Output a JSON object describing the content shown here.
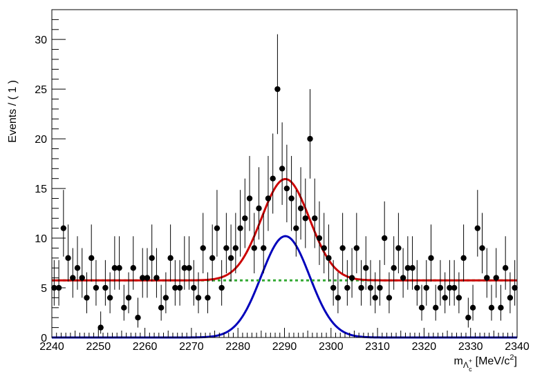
{
  "chart_data": {
    "type": "scatter",
    "title": "",
    "ylabel": "Events / ( 1 )",
    "xlabel": {
      "m": "m",
      "sub": "Λ",
      "sub_sup": "+",
      "sub_sub": "c",
      "units": "[MeV/c",
      "units_sup": "2",
      "units_close": "]"
    },
    "xlim": [
      2240,
      2340
    ],
    "ylim": [
      0,
      33
    ],
    "x_ticks": [
      2240,
      2250,
      2260,
      2270,
      2280,
      2290,
      2300,
      2310,
      2320,
      2330,
      2340
    ],
    "y_ticks": [
      0,
      5,
      10,
      15,
      20,
      25,
      30
    ],
    "grid": false,
    "colors": {
      "data": "#000000",
      "total_fit": "#cc0000",
      "signal": "#0000bb",
      "background": "#33aa33"
    },
    "fit": {
      "mean": 2290.2,
      "sigma": 5.2,
      "signal_amplitude": 10.2,
      "background_level": 5.75
    },
    "series": [
      {
        "kind": "data_points",
        "x": [
          2240.5,
          2241.5,
          2242.5,
          2243.5,
          2244.5,
          2245.5,
          2246.5,
          2247.5,
          2248.5,
          2249.5,
          2250.5,
          2251.5,
          2252.5,
          2253.5,
          2254.5,
          2255.5,
          2256.5,
          2257.5,
          2258.5,
          2259.5,
          2260.5,
          2261.5,
          2262.5,
          2263.5,
          2264.5,
          2265.5,
          2266.5,
          2267.5,
          2268.5,
          2269.5,
          2270.5,
          2271.5,
          2272.5,
          2273.5,
          2274.5,
          2275.5,
          2276.5,
          2277.5,
          2278.5,
          2279.5,
          2280.5,
          2281.5,
          2282.5,
          2283.5,
          2284.5,
          2285.5,
          2286.5,
          2287.5,
          2288.5,
          2289.5,
          2290.5,
          2291.5,
          2292.5,
          2293.5,
          2294.5,
          2295.5,
          2296.5,
          2297.5,
          2298.5,
          2299.5,
          2300.5,
          2301.5,
          2302.5,
          2303.5,
          2304.5,
          2305.5,
          2306.5,
          2307.5,
          2308.5,
          2309.5,
          2310.5,
          2311.5,
          2312.5,
          2313.5,
          2314.5,
          2315.5,
          2316.5,
          2317.5,
          2318.5,
          2319.5,
          2320.5,
          2321.5,
          2322.5,
          2323.5,
          2324.5,
          2325.5,
          2326.5,
          2327.5,
          2328.5,
          2329.5,
          2330.5,
          2331.5,
          2332.5,
          2333.5,
          2334.5,
          2335.5,
          2336.5,
          2337.5,
          2338.5,
          2339.5
        ],
        "values": [
          5,
          5,
          11,
          8,
          6,
          7,
          6,
          4,
          8,
          5,
          1,
          5,
          4,
          7,
          7,
          3,
          4,
          7,
          2,
          6,
          6,
          8,
          6,
          3,
          4,
          8,
          5,
          5,
          7,
          7,
          5,
          4,
          9,
          4,
          8,
          11,
          5,
          9,
          8,
          9,
          11,
          12,
          14,
          9,
          13,
          9,
          14,
          16,
          25,
          17,
          15,
          14,
          11,
          13,
          12,
          20,
          12,
          10,
          9,
          8,
          5,
          4,
          9,
          5,
          6,
          9,
          5,
          7,
          5,
          4,
          5,
          10,
          4,
          7,
          9,
          6,
          7,
          7,
          5,
          3,
          5,
          8,
          3,
          5,
          4,
          5,
          5,
          4,
          8,
          2,
          3,
          11,
          9,
          6,
          3,
          6,
          3,
          7,
          4,
          5
        ]
      }
    ]
  }
}
